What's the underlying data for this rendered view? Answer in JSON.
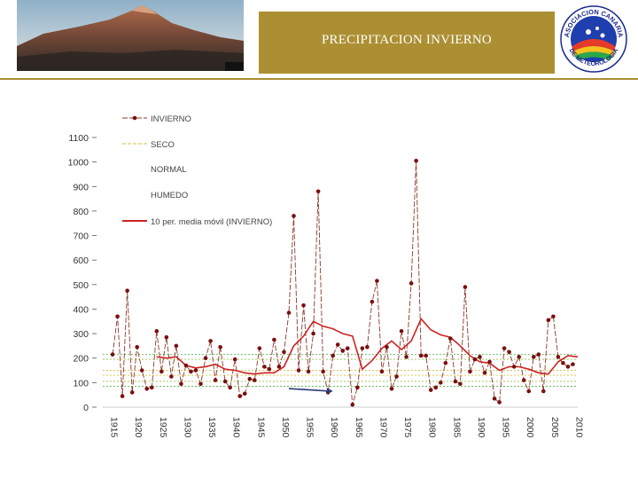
{
  "header": {
    "title": "PRECIPITACION INVIERNO",
    "logo_top_text": "ASOCIACION CANARIA",
    "logo_bottom_text": "DE METEOROLOGIA"
  },
  "colors": {
    "header_bar": "#ac8f32",
    "series_line": "#8b3a2a",
    "markers": "#7a0f0f",
    "moving_average": "#cc2222",
    "seco": "#d9c040",
    "normal": "#90c050",
    "humedo": "#66bb66",
    "arrow": "#2a3a7a"
  },
  "chart_data": {
    "type": "line",
    "ylim": [
      0,
      1100
    ],
    "y_ticks": [
      "0",
      "100",
      "200",
      "300",
      "400",
      "500",
      "600",
      "700",
      "800",
      "900",
      "1000",
      "1100"
    ],
    "x_ticks": [
      "1915",
      "1920",
      "1925",
      "1930",
      "1935",
      "1940",
      "1945",
      "1950",
      "1955",
      "1960",
      "1965",
      "1970",
      "1975",
      "1980",
      "1985",
      "1990",
      "1995",
      "2000",
      "2005",
      "2010"
    ],
    "x_range": [
      1915,
      2010
    ],
    "legend": [
      {
        "label": "INVIERNO",
        "style": "line-marker"
      },
      {
        "label": "SECO",
        "style": "dashed"
      },
      {
        "label": "NORMAL",
        "style": "none"
      },
      {
        "label": "HUMEDO",
        "style": "none"
      },
      {
        "label": "10 per. media móvil (INVIERNO)",
        "style": "solid"
      }
    ],
    "threshold_lines": [
      {
        "name": "SECO",
        "values": [
          150,
          130
        ]
      },
      {
        "name": "NORMAL",
        "values": [
          105,
          195
        ]
      },
      {
        "name": "HUMEDO",
        "values": [
          85,
          215
        ]
      }
    ],
    "series": [
      {
        "name": "INVIERNO",
        "x": [
          1916,
          1917,
          1918,
          1919,
          1920,
          1921,
          1922,
          1923,
          1924,
          1925,
          1926,
          1927,
          1928,
          1929,
          1930,
          1931,
          1932,
          1933,
          1934,
          1935,
          1936,
          1937,
          1938,
          1939,
          1940,
          1941,
          1942,
          1943,
          1944,
          1945,
          1946,
          1947,
          1948,
          1949,
          1950,
          1951,
          1952,
          1953,
          1954,
          1955,
          1956,
          1957,
          1958,
          1959,
          1960,
          1961,
          1962,
          1963,
          1964,
          1965,
          1966,
          1967,
          1968,
          1969,
          1970,
          1971,
          1972,
          1973,
          1974,
          1975,
          1976,
          1977,
          1978,
          1979,
          1980,
          1981,
          1982,
          1983,
          1984,
          1985,
          1986,
          1987,
          1988,
          1989,
          1990,
          1991,
          1992,
          1993,
          1994,
          1995,
          1996,
          1997,
          1998,
          1999,
          2000,
          2001,
          2002,
          2003,
          2004,
          2005,
          2006,
          2007,
          2008,
          2009,
          2010
        ],
        "values": [
          215,
          370,
          45,
          475,
          60,
          245,
          150,
          75,
          80,
          310,
          145,
          285,
          125,
          250,
          95,
          170,
          145,
          150,
          95,
          200,
          270,
          110,
          245,
          105,
          80,
          195,
          45,
          55,
          115,
          110,
          240,
          165,
          155,
          275,
          165,
          225,
          385,
          780,
          150,
          415,
          145,
          300,
          880,
          145,
          60,
          210,
          255,
          230,
          240,
          10,
          80,
          240,
          245,
          430,
          515,
          145,
          245,
          75,
          125,
          310,
          205,
          505,
          1005,
          210,
          210,
          70,
          80,
          100,
          180,
          280,
          105,
          95,
          490,
          145,
          195,
          205,
          140,
          185,
          35,
          20,
          240,
          225,
          165,
          205,
          110,
          65,
          205,
          215,
          65,
          355,
          370,
          205,
          180,
          165,
          175
        ]
      },
      {
        "name": "10 per. media móvil (INVIERNO)",
        "x": [
          1925,
          1927,
          1929,
          1931,
          1933,
          1935,
          1937,
          1939,
          1941,
          1943,
          1945,
          1947,
          1949,
          1951,
          1953,
          1955,
          1957,
          1959,
          1961,
          1963,
          1965,
          1967,
          1969,
          1971,
          1973,
          1975,
          1977,
          1979,
          1981,
          1983,
          1985,
          1987,
          1989,
          1991,
          1993,
          1995,
          1997,
          1999,
          2001,
          2003,
          2005,
          2007,
          2009,
          2011
        ],
        "values": [
          205,
          200,
          205,
          170,
          160,
          165,
          175,
          155,
          150,
          140,
          135,
          140,
          140,
          165,
          250,
          290,
          350,
          330,
          320,
          300,
          290,
          155,
          190,
          240,
          270,
          235,
          270,
          360,
          315,
          295,
          285,
          250,
          210,
          185,
          180,
          150,
          165,
          165,
          155,
          140,
          135,
          185,
          210,
          205
        ]
      }
    ],
    "annotation": {
      "type": "arrow",
      "from_x": 1952,
      "to_x": 1961,
      "y": 65
    }
  }
}
